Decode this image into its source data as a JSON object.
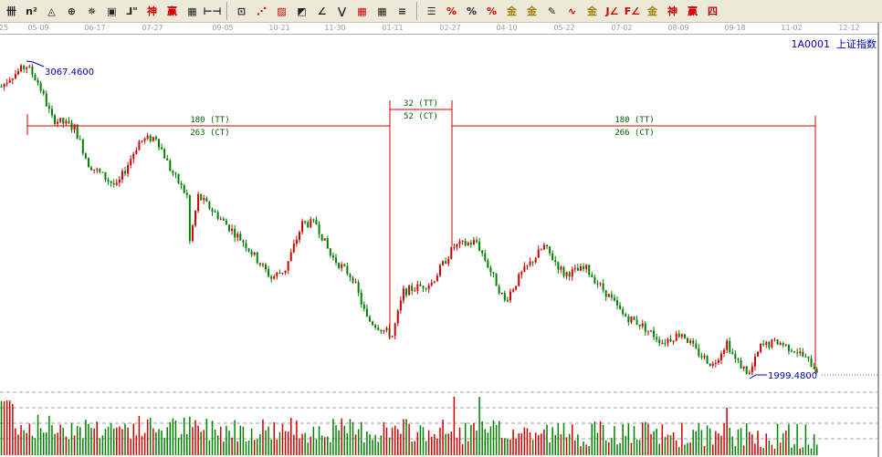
{
  "toolbar": {
    "icons": [
      "grid-icon",
      "n2-icon",
      "triangle-icon",
      "target-icon",
      "compass-icon",
      "square-compass-icon",
      "line-tick-icon",
      "shen-icon",
      "ying-icon",
      "ruler-icon",
      "width-icon",
      "box-icon",
      "fan-icon",
      "gann-box-icon",
      "gann-fan-icon",
      "angle-icon",
      "wave-icon",
      "grid-red-icon",
      "grid-black-icon",
      "parallel-icon",
      "list-icon",
      "percent-red-icon",
      "percent-icon",
      "percent-line-icon",
      "gold-circle-icon",
      "gold-line-icon",
      "arrow-pen-icon",
      "sine-icon",
      "gold-bar-icon",
      "j-angle-icon",
      "f-angle-icon",
      "gold-angle-icon",
      "shen-angle-icon",
      "ying-angle-icon",
      "four-angle-icon"
    ],
    "glyphs": [
      "卌",
      "n²",
      "◬",
      "⊕",
      "✵",
      "▣",
      "⅃\"",
      "神",
      "赢",
      "▦",
      "⊢⊣",
      "⊡",
      "⋰",
      "▨",
      "◩",
      "∠",
      "⋁",
      "▦",
      "▦",
      "≡",
      "☰",
      "%",
      "%",
      "%",
      "金",
      "金",
      "✎",
      "∿",
      "金",
      "J∠",
      "F∠",
      "金",
      "神",
      "赢",
      "四"
    ]
  },
  "date_axis": [
    "25",
    "05-09",
    "06-17",
    "07-27",
    "09-05",
    "10-21",
    "11-30",
    "01-11",
    "02-27",
    "04-10",
    "05-22",
    "07-02",
    "08-09",
    "09-18",
    "11-02",
    "12-12"
  ],
  "security": {
    "code": "1A0001",
    "name": "上证指数"
  },
  "high_label": "3067.4600",
  "low_label": "1999.4800",
  "cycles": [
    {
      "tt": "180 (TT)",
      "ct": "263 (CT)"
    },
    {
      "tt": "32 (TT)",
      "ct": "52 (CT)"
    },
    {
      "tt": "180 (TT)",
      "ct": "266 (CT)"
    }
  ],
  "colors": {
    "up": "#d00000",
    "down": "#008000",
    "measure": "#d00000",
    "label": "#0000b0"
  },
  "chart_data": {
    "type": "candlestick",
    "ylim": [
      1999.48,
      3067.46
    ],
    "price_path": [
      [
        0,
        2989
      ],
      [
        3,
        3020
      ],
      [
        9,
        3061
      ],
      [
        13,
        3005
      ],
      [
        18,
        2880
      ],
      [
        26,
        2848
      ],
      [
        31,
        2723
      ],
      [
        41,
        2645
      ],
      [
        49,
        2801
      ],
      [
        55,
        2817
      ],
      [
        60,
        2707
      ],
      [
        66,
        2613
      ],
      [
        67,
        2457
      ],
      [
        70,
        2613
      ],
      [
        78,
        2535
      ],
      [
        86,
        2457
      ],
      [
        96,
        2332
      ],
      [
        101,
        2363
      ],
      [
        107,
        2519
      ],
      [
        112,
        2519
      ],
      [
        117,
        2410
      ],
      [
        125,
        2332
      ],
      [
        130,
        2191
      ],
      [
        139,
        2134
      ],
      [
        143,
        2285
      ],
      [
        153,
        2316
      ],
      [
        161,
        2441
      ],
      [
        169,
        2457
      ],
      [
        179,
        2253
      ],
      [
        185,
        2347
      ],
      [
        193,
        2441
      ],
      [
        200,
        2347
      ],
      [
        208,
        2363
      ],
      [
        216,
        2269
      ],
      [
        221,
        2206
      ],
      [
        227,
        2175
      ],
      [
        235,
        2113
      ],
      [
        242,
        2144
      ],
      [
        247,
        2081
      ],
      [
        253,
        2034
      ],
      [
        258,
        2113
      ],
      [
        261,
        2050
      ],
      [
        266,
        2003
      ],
      [
        270,
        2097
      ],
      [
        276,
        2113
      ],
      [
        283,
        2081
      ],
      [
        290,
        2019
      ]
    ]
  }
}
